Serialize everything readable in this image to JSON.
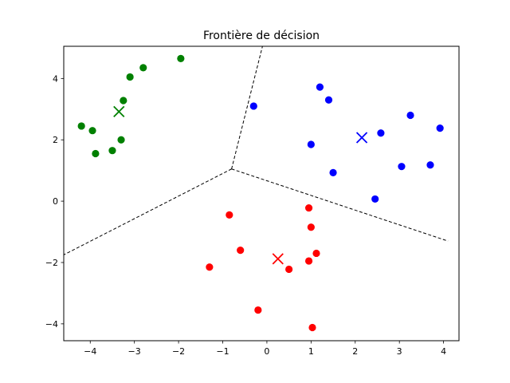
{
  "chart_data": {
    "type": "scatter",
    "title": "Frontière de décision",
    "xlabel": "",
    "ylabel": "",
    "xlim": [
      -4.6,
      4.35
    ],
    "ylim": [
      -4.55,
      5.05
    ],
    "xticks": [
      -4,
      -3,
      -2,
      -1,
      0,
      1,
      2,
      3,
      4
    ],
    "yticks": [
      -4,
      -2,
      0,
      2,
      4
    ],
    "grid": false,
    "series": [
      {
        "color": "#008000",
        "points": [
          [
            -4.2,
            2.45
          ],
          [
            -3.95,
            2.3
          ],
          [
            -3.88,
            1.55
          ],
          [
            -3.5,
            1.65
          ],
          [
            -3.3,
            2.0
          ],
          [
            -3.25,
            3.28
          ],
          [
            -3.1,
            4.05
          ],
          [
            -2.8,
            4.35
          ],
          [
            -1.95,
            4.65
          ]
        ],
        "centroid": [
          -3.35,
          2.92
        ]
      },
      {
        "color": "#0000ff",
        "points": [
          [
            -0.3,
            3.1
          ],
          [
            1.2,
            3.72
          ],
          [
            1.4,
            3.3
          ],
          [
            1.0,
            1.85
          ],
          [
            1.5,
            0.93
          ],
          [
            2.45,
            0.07
          ],
          [
            2.58,
            2.22
          ],
          [
            3.05,
            1.13
          ],
          [
            3.25,
            2.8
          ],
          [
            3.7,
            1.18
          ],
          [
            3.92,
            2.38
          ]
        ],
        "centroid": [
          2.15,
          2.07
        ]
      },
      {
        "color": "#ff0000",
        "points": [
          [
            -0.85,
            -0.45
          ],
          [
            -0.6,
            -1.6
          ],
          [
            -1.3,
            -2.15
          ],
          [
            -0.2,
            -3.55
          ],
          [
            0.5,
            -2.22
          ],
          [
            0.95,
            -0.22
          ],
          [
            1.0,
            -0.85
          ],
          [
            0.95,
            -1.95
          ],
          [
            1.12,
            -1.7
          ],
          [
            1.03,
            -4.12
          ]
        ],
        "centroid": [
          0.25,
          -1.88
        ]
      }
    ],
    "boundaries": [
      [
        [
          -0.8,
          1.05
        ],
        [
          -0.1,
          5.05
        ]
      ],
      [
        [
          -0.8,
          1.05
        ],
        [
          -4.6,
          -1.75
        ]
      ],
      [
        [
          -0.8,
          1.05
        ],
        [
          4.1,
          -1.3
        ]
      ]
    ]
  }
}
